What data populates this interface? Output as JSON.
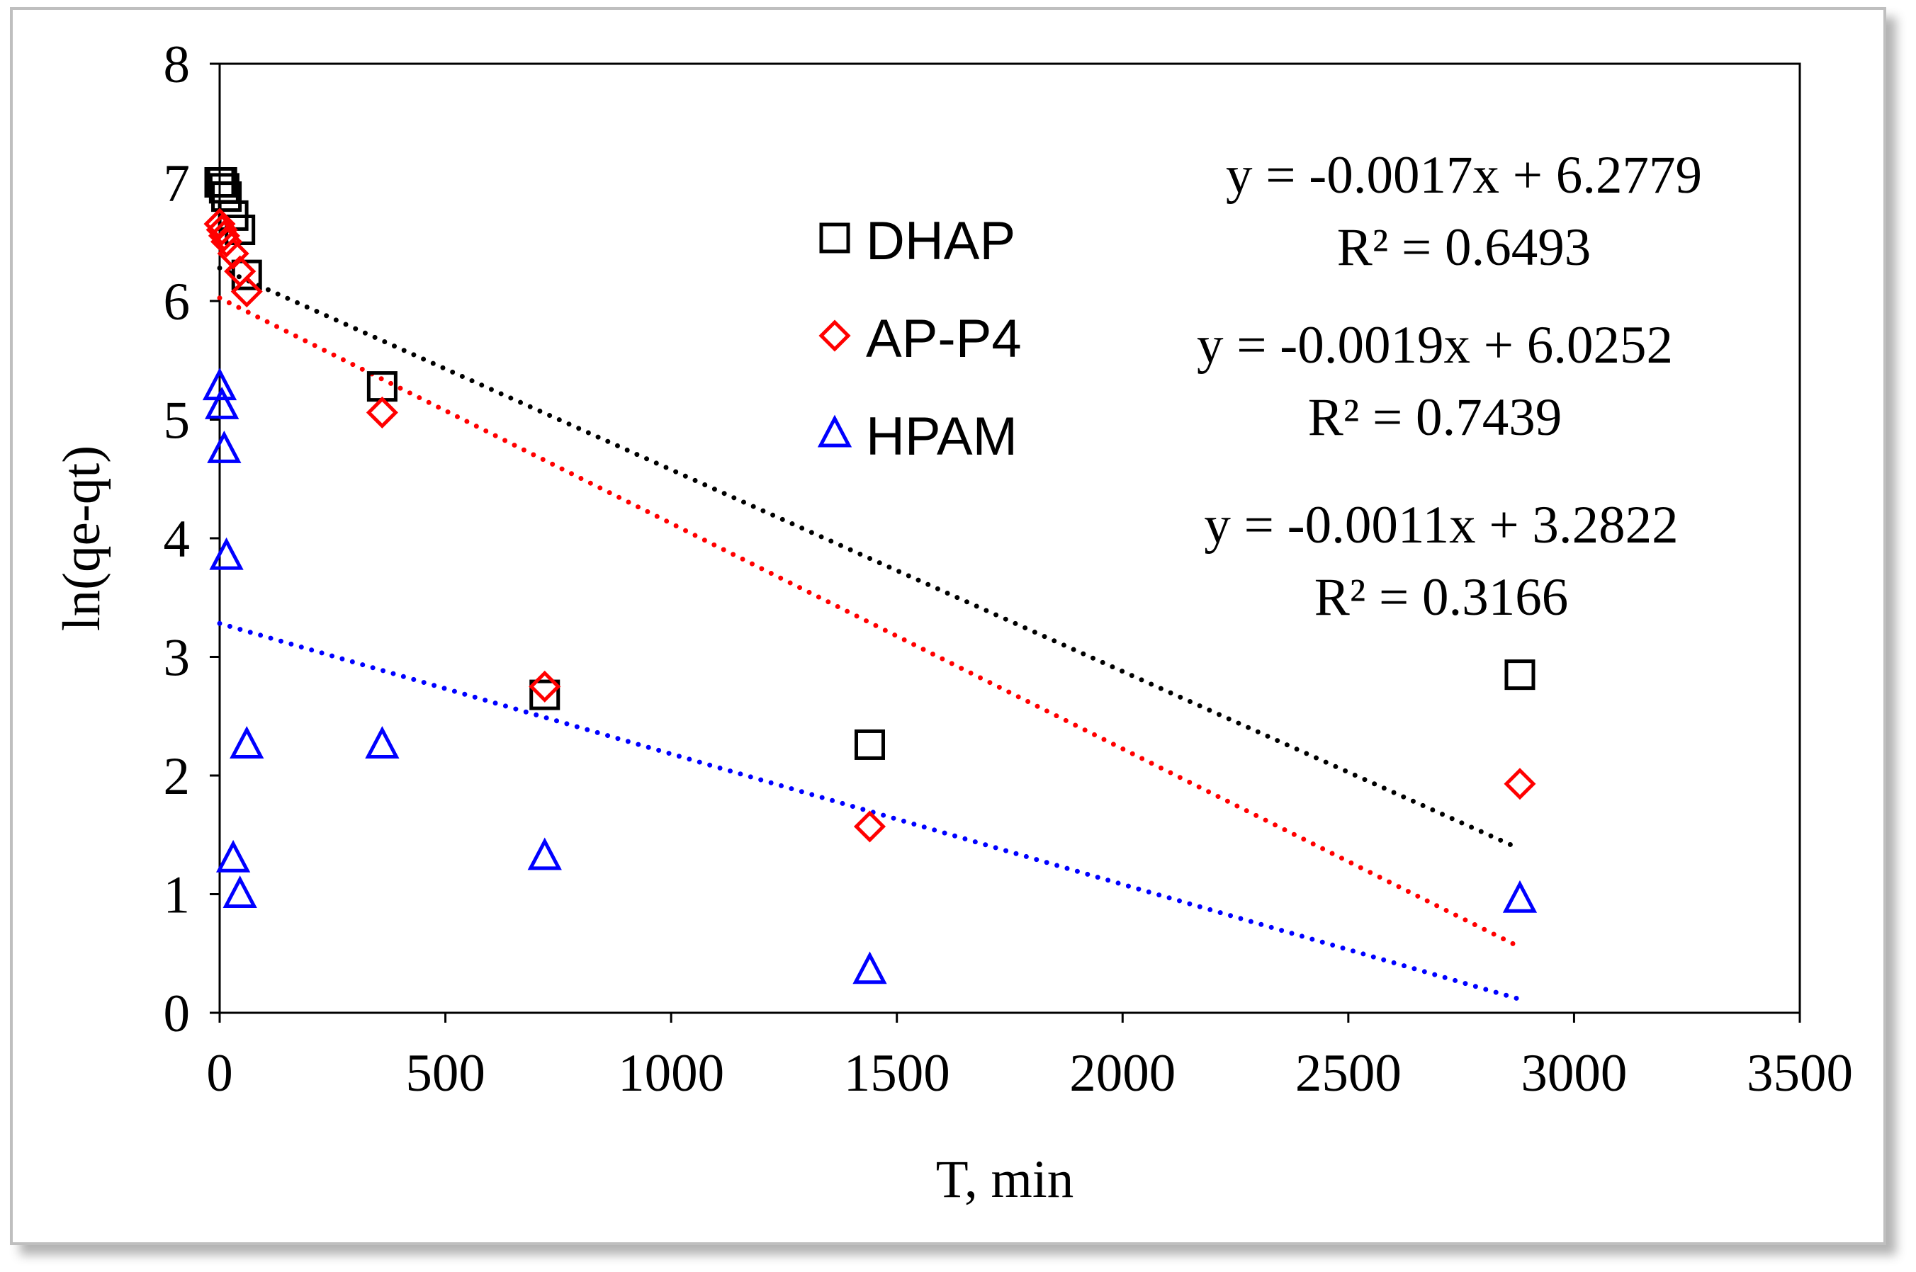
{
  "chart_data": {
    "type": "scatter",
    "title": "",
    "xlabel": "T, min",
    "ylabel": "ln(qe-qt)",
    "xlim": [
      0,
      3500
    ],
    "ylim": [
      0,
      8
    ],
    "xticks": [
      "0",
      "500",
      "1000",
      "1500",
      "2000",
      "2500",
      "3000",
      "3500"
    ],
    "yticks": [
      "0",
      "1",
      "2",
      "3",
      "4",
      "5",
      "6",
      "7",
      "8"
    ],
    "legend_position": "upper-center",
    "series": [
      {
        "name": "DHAP",
        "marker": "square",
        "color": "#000000",
        "x": [
          0,
          5,
          10,
          15,
          30,
          45,
          60,
          360,
          720,
          1440,
          2880
        ],
        "y": [
          7.0,
          7.0,
          6.95,
          6.88,
          6.72,
          6.6,
          6.22,
          5.28,
          2.68,
          2.26,
          2.85
        ],
        "trendline": {
          "slope": -0.0017,
          "intercept": 6.2779,
          "x_range": [
            0,
            2880
          ],
          "equation": "y = -0.0017x + 6.2779",
          "r2": "R² = 0.6493"
        }
      },
      {
        "name": "AP-P4",
        "marker": "diamond",
        "color": "#ff0000",
        "x": [
          0,
          5,
          10,
          15,
          30,
          45,
          60,
          360,
          720,
          1440,
          2880
        ],
        "y": [
          6.65,
          6.6,
          6.55,
          6.5,
          6.4,
          6.25,
          6.08,
          5.06,
          2.75,
          1.57,
          1.93
        ],
        "trendline": {
          "slope": -0.0019,
          "intercept": 6.0252,
          "x_range": [
            0,
            2880
          ],
          "equation": "y = -0.0019x + 6.0252",
          "r2": "R² = 0.7439"
        }
      },
      {
        "name": "HPAM",
        "marker": "triangle",
        "color": "#0000ff",
        "x": [
          0,
          5,
          10,
          15,
          30,
          45,
          60,
          360,
          720,
          1440,
          2880
        ],
        "y": [
          5.28,
          5.12,
          4.75,
          3.85,
          1.3,
          1.0,
          2.26,
          2.26,
          1.32,
          0.36,
          0.96
        ],
        "trendline": {
          "slope": -0.0011,
          "intercept": 3.2822,
          "x_range": [
            0,
            2880
          ],
          "equation": "y = -0.0011x + 3.2822",
          "r2": "R² = 0.3166"
        }
      }
    ]
  }
}
